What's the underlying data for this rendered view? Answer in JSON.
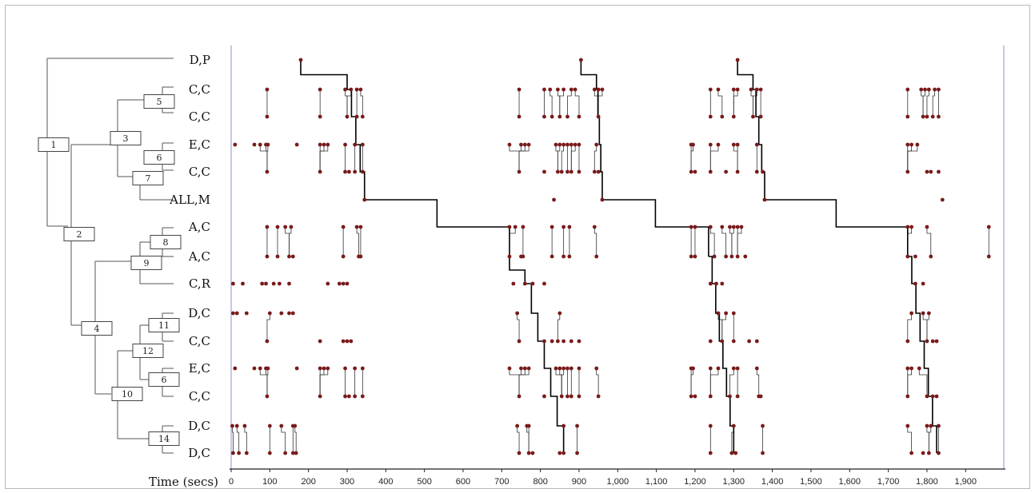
{
  "axis": {
    "title": "Time (secs)",
    "unit": "secs",
    "range": [
      0,
      2000
    ],
    "ticks": [
      0,
      100,
      200,
      300,
      400,
      500,
      600,
      700,
      800,
      900,
      1000,
      1100,
      1200,
      1300,
      1400,
      1500,
      1600,
      1700,
      1800,
      1900
    ],
    "tick_labels": [
      "0",
      "100",
      "200",
      "300",
      "400",
      "500",
      "600",
      "700",
      "800",
      "900",
      "1,000",
      "1,100",
      "1,200",
      "1,300",
      "1,400",
      "1,500",
      "1,600",
      "1,700",
      "1,800",
      "1,900"
    ]
  },
  "colors": {
    "tree": "#555555",
    "event": "#7a1a1a",
    "path": "#000000",
    "bound": "#8c8cd8",
    "baseline": "#c0c0c0"
  },
  "rows": [
    {
      "label": "D,P",
      "events": [
        180,
        905,
        1310
      ]
    },
    {
      "label": "C,C",
      "events": [
        93,
        230,
        295,
        310,
        325,
        335,
        745,
        810,
        825,
        845,
        860,
        880,
        890,
        940,
        950,
        960,
        1240,
        1260,
        1300,
        1310,
        1345,
        1360,
        1370,
        1750,
        1785,
        1795,
        1805,
        1820,
        1830
      ]
    },
    {
      "label": "C,C",
      "events": [
        93,
        230,
        300,
        325,
        340,
        745,
        810,
        830,
        850,
        870,
        900,
        950,
        1240,
        1270,
        1300,
        1350,
        1370,
        1750,
        1790,
        1800,
        1815,
        1830
      ]
    },
    {
      "label": "E,C",
      "events": [
        10,
        60,
        75,
        90,
        95,
        170,
        230,
        240,
        250,
        295,
        320,
        340,
        720,
        750,
        760,
        770,
        840,
        850,
        860,
        870,
        880,
        890,
        900,
        945,
        1190,
        1195,
        1240,
        1260,
        1300,
        1310,
        1360,
        1750,
        1760,
        1775
      ]
    },
    {
      "label": "C,C",
      "events": [
        93,
        230,
        295,
        305,
        320,
        340,
        745,
        810,
        845,
        855,
        870,
        880,
        900,
        940,
        950,
        1190,
        1200,
        1240,
        1280,
        1310,
        1360,
        1375,
        1750,
        1800,
        1810,
        1830
      ]
    },
    {
      "label": "ALL,M",
      "events": [
        345,
        835,
        960,
        1380,
        1840
      ]
    },
    {
      "label": "A,C",
      "events": [
        93,
        120,
        140,
        155,
        290,
        325,
        335,
        720,
        735,
        755,
        830,
        860,
        875,
        940,
        1190,
        1200,
        1240,
        1270,
        1290,
        1300,
        1310,
        1320,
        1750,
        1760,
        1800,
        1960
      ]
    },
    {
      "label": "A,C",
      "events": [
        93,
        120,
        150,
        160,
        290,
        330,
        335,
        720,
        750,
        755,
        830,
        860,
        875,
        945,
        1190,
        1200,
        1250,
        1280,
        1295,
        1310,
        1330,
        1750,
        1770,
        1810,
        1960
      ]
    },
    {
      "label": "C,R",
      "events": [
        5,
        30,
        80,
        90,
        110,
        125,
        150,
        250,
        280,
        290,
        300,
        730,
        760,
        780,
        810,
        1240,
        1255,
        1270,
        1770,
        1790
      ]
    },
    {
      "label": "D,C",
      "events": [
        5,
        15,
        40,
        100,
        130,
        150,
        160,
        740,
        850,
        1260,
        1280,
        1300,
        1760,
        1790,
        1805
      ]
    },
    {
      "label": "C,C",
      "events": [
        93,
        230,
        290,
        300,
        310,
        745,
        810,
        830,
        845,
        860,
        880,
        900,
        1240,
        1270,
        1300,
        1340,
        1360,
        1750,
        1800,
        1815,
        1825
      ]
    },
    {
      "label": "E,C",
      "events": [
        10,
        60,
        75,
        90,
        95,
        170,
        230,
        240,
        250,
        295,
        320,
        340,
        720,
        750,
        760,
        770,
        840,
        850,
        860,
        870,
        880,
        900,
        945,
        1190,
        1195,
        1240,
        1260,
        1300,
        1310,
        1360,
        1750,
        1760,
        1780
      ]
    },
    {
      "label": "C,C",
      "events": [
        93,
        230,
        295,
        305,
        320,
        340,
        745,
        810,
        855,
        870,
        880,
        900,
        950,
        1190,
        1200,
        1240,
        1290,
        1310,
        1365,
        1370,
        1750,
        1800,
        1815,
        1825
      ]
    },
    {
      "label": "D,C",
      "events": [
        3,
        15,
        35,
        100,
        130,
        160,
        165,
        740,
        765,
        770,
        860,
        895,
        1240,
        1300,
        1375,
        1750,
        1800,
        1810,
        1830
      ]
    },
    {
      "label": "D,C",
      "events": [
        5,
        20,
        40,
        100,
        140,
        160,
        168,
        745,
        770,
        780,
        850,
        860,
        895,
        1240,
        1295,
        1305,
        1375,
        1760,
        1790,
        1805,
        1830
      ]
    }
  ],
  "tree": {
    "nodes": [
      {
        "id": "1",
        "label": "1"
      },
      {
        "id": "2",
        "label": "2"
      },
      {
        "id": "3",
        "label": "3"
      },
      {
        "id": "4",
        "label": "4"
      },
      {
        "id": "5",
        "label": "5"
      },
      {
        "id": "6a",
        "label": "6"
      },
      {
        "id": "7",
        "label": "7"
      },
      {
        "id": "8",
        "label": "8"
      },
      {
        "id": "9",
        "label": "9"
      },
      {
        "id": "10",
        "label": "10"
      },
      {
        "id": "11",
        "label": "11"
      },
      {
        "id": "12",
        "label": "12"
      },
      {
        "id": "6b",
        "label": "6"
      },
      {
        "id": "14",
        "label": "14"
      }
    ]
  },
  "path_segments": [
    {
      "from_row": 0,
      "to_row": 1,
      "t_start": 180,
      "t_end": 300
    },
    {
      "from_row": 1,
      "to_row": 5,
      "t_start": 300,
      "t_end": 345
    },
    {
      "from_row": 5,
      "to_row": 7,
      "t_start": 345,
      "t_end": 720
    },
    {
      "from_row": 7,
      "to_row": 8,
      "t_start": 720,
      "t_end": 760
    },
    {
      "from_row": 8,
      "to_row": 14,
      "t_start": 760,
      "t_end": 860
    },
    {
      "from_row": 0,
      "to_row": 1,
      "t_start": 905,
      "t_end": 945
    },
    {
      "from_row": 1,
      "to_row": 5,
      "t_start": 945,
      "t_end": 960
    },
    {
      "from_row": 5,
      "to_row": 7,
      "t_start": 960,
      "t_end": 1235
    },
    {
      "from_row": 7,
      "to_row": 14,
      "t_start": 1235,
      "t_end": 1300
    },
    {
      "from_row": 0,
      "to_row": 1,
      "t_start": 1310,
      "t_end": 1350
    },
    {
      "from_row": 1,
      "to_row": 5,
      "t_start": 1350,
      "t_end": 1380
    },
    {
      "from_row": 5,
      "to_row": 7,
      "t_start": 1380,
      "t_end": 1750
    },
    {
      "from_row": 7,
      "to_row": 14,
      "t_start": 1750,
      "t_end": 1825
    }
  ]
}
